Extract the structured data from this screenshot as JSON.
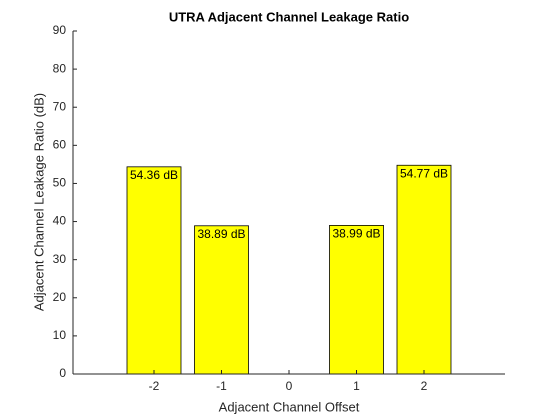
{
  "chart_data": {
    "type": "bar",
    "title": "UTRA Adjacent Channel Leakage Ratio",
    "x_label": "Adjacent Channel Offset",
    "y_label": "Adjacent Channel Leakage Ratio (dB)",
    "x": [
      -2,
      -1,
      0,
      1,
      2
    ],
    "values": [
      54.36,
      38.89,
      null,
      38.99,
      54.77
    ],
    "value_labels": [
      "54.36 dB",
      "38.89 dB",
      null,
      "38.99 dB",
      "54.77 dB"
    ],
    "color": "#ffff00",
    "xlim": [
      -3.2,
      3.2
    ],
    "xticks": [
      -2,
      -1,
      0,
      1,
      2
    ],
    "ylim": [
      0,
      90
    ],
    "yticks": [
      0,
      10,
      20,
      30,
      40,
      50,
      60,
      70,
      80,
      90
    ]
  }
}
